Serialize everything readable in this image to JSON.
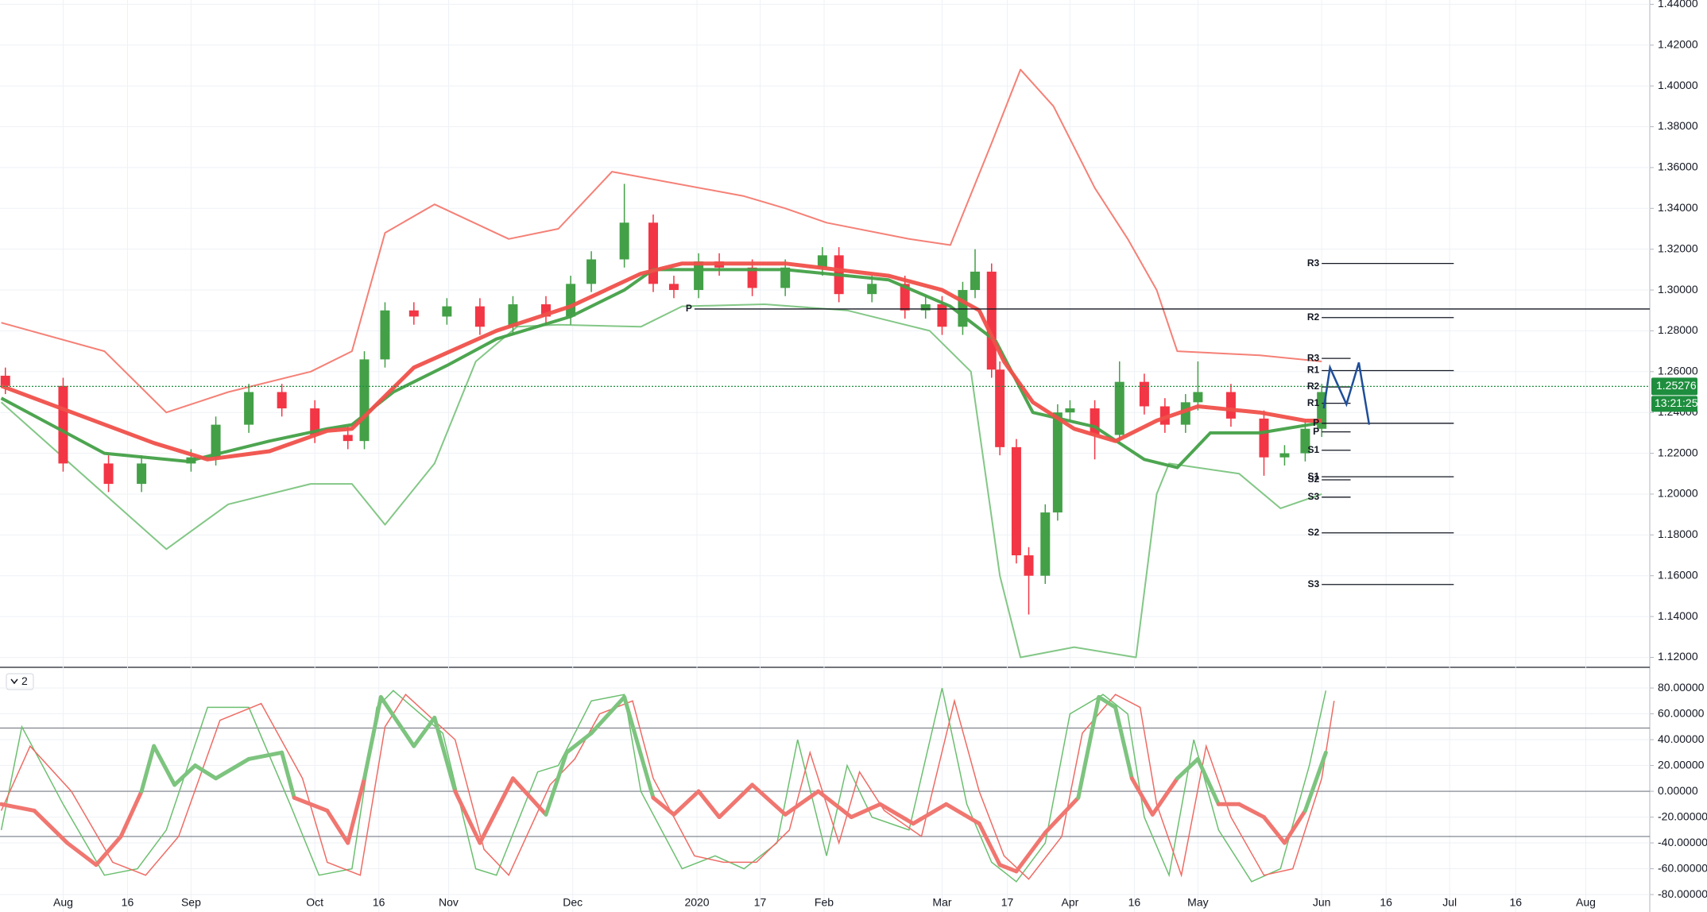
{
  "chart_data": [
    {
      "type": "candlestick",
      "x": [
        -14,
        0,
        11,
        19,
        31,
        37,
        45,
        53,
        61,
        69,
        73,
        78,
        85,
        93,
        101,
        109,
        117,
        123,
        128,
        136,
        143,
        148,
        154,
        159,
        167,
        175,
        184,
        188,
        196,
        204,
        209,
        213,
        218,
        221,
        225,
        227,
        231,
        234,
        238,
        241,
        244,
        250,
        256,
        262,
        267,
        272,
        275,
        283,
        291,
        296,
        301,
        305
      ],
      "open": [
        1.258,
        1.253,
        1.215,
        1.205,
        1.215,
        1.218,
        1.234,
        1.25,
        1.242,
        1.229,
        1.226,
        1.266,
        1.29,
        1.287,
        1.292,
        1.282,
        1.293,
        1.287,
        1.303,
        1.315,
        1.333,
        1.303,
        1.3,
        1.314,
        1.311,
        1.301,
        1.311,
        1.317,
        1.298,
        1.303,
        1.29,
        1.293,
        1.282,
        1.3,
        1.309,
        1.261,
        1.223,
        1.17,
        1.16,
        1.191,
        1.24,
        1.242,
        1.229,
        1.255,
        1.243,
        1.234,
        1.245,
        1.25,
        1.237,
        1.218,
        1.22,
        1.232
      ],
      "high": [
        1.262,
        1.257,
        1.219,
        1.219,
        1.222,
        1.238,
        1.254,
        1.254,
        1.246,
        1.233,
        1.27,
        1.294,
        1.294,
        1.296,
        1.296,
        1.297,
        1.297,
        1.307,
        1.319,
        1.352,
        1.337,
        1.307,
        1.318,
        1.318,
        1.315,
        1.315,
        1.321,
        1.321,
        1.307,
        1.307,
        1.297,
        1.297,
        1.304,
        1.32,
        1.313,
        1.265,
        1.227,
        1.174,
        1.195,
        1.244,
        1.246,
        1.246,
        1.265,
        1.259,
        1.247,
        1.249,
        1.265,
        1.254,
        1.241,
        1.224,
        1.236,
        1.254
      ],
      "low": [
        1.249,
        1.211,
        1.201,
        1.201,
        1.211,
        1.214,
        1.23,
        1.238,
        1.225,
        1.222,
        1.222,
        1.262,
        1.283,
        1.283,
        1.278,
        1.278,
        1.283,
        1.283,
        1.299,
        1.311,
        1.299,
        1.296,
        1.296,
        1.307,
        1.297,
        1.297,
        1.307,
        1.294,
        1.294,
        1.286,
        1.286,
        1.278,
        1.278,
        1.296,
        1.257,
        1.219,
        1.166,
        1.141,
        1.156,
        1.187,
        1.236,
        1.217,
        1.225,
        1.239,
        1.23,
        1.23,
        1.241,
        1.233,
        1.209,
        1.214,
        1.216,
        1.228
      ],
      "close": [
        1.253,
        1.215,
        1.205,
        1.215,
        1.218,
        1.234,
        1.25,
        1.242,
        1.229,
        1.226,
        1.266,
        1.29,
        1.287,
        1.292,
        1.282,
        1.293,
        1.287,
        1.303,
        1.315,
        1.333,
        1.303,
        1.3,
        1.314,
        1.311,
        1.301,
        1.311,
        1.317,
        1.298,
        1.303,
        1.29,
        1.293,
        1.282,
        1.3,
        1.309,
        1.261,
        1.223,
        1.17,
        1.16,
        1.191,
        1.24,
        1.242,
        1.229,
        1.255,
        1.243,
        1.234,
        1.245,
        1.25,
        1.237,
        1.218,
        1.22,
        1.232,
        1.25
      ],
      "up_color": "#43a047",
      "down_color": "#f23645",
      "xlim": [
        -15.3,
        384.5
      ],
      "ylim": [
        1.1159,
        1.4421
      ],
      "yticks": [
        {
          "value": 1.12,
          "label": "1.12000"
        },
        {
          "value": 1.14,
          "label": "1.14000"
        },
        {
          "value": 1.16,
          "label": "1.16000"
        },
        {
          "value": 1.18,
          "label": "1.18000"
        },
        {
          "value": 1.2,
          "label": "1.20000"
        },
        {
          "value": 1.22,
          "label": "1.22000"
        },
        {
          "value": 1.24,
          "label": "1.24000"
        },
        {
          "value": 1.26,
          "label": "1.26000"
        },
        {
          "value": 1.28,
          "label": "1.28000"
        },
        {
          "value": 1.3,
          "label": "1.30000"
        },
        {
          "value": 1.32,
          "label": "1.32000"
        },
        {
          "value": 1.34,
          "label": "1.34000"
        },
        {
          "value": 1.36,
          "label": "1.36000"
        },
        {
          "value": 1.38,
          "label": "1.38000"
        },
        {
          "value": 1.4,
          "label": "1.40000"
        },
        {
          "value": 1.42,
          "label": "1.42000"
        },
        {
          "value": 1.44,
          "label": "1.44000"
        }
      ],
      "grid": true,
      "lines": [
        {
          "color": "#f4796f",
          "width": 2,
          "x": [
            -15,
            10,
            25,
            40,
            60,
            70,
            78,
            90,
            108,
            120,
            133,
            165,
            175,
            185,
            205,
            215,
            225,
            232,
            240,
            250,
            258,
            265,
            270,
            290,
            305
          ],
          "values": [
            1.284,
            1.27,
            1.24,
            1.25,
            1.26,
            1.27,
            1.328,
            1.342,
            1.325,
            1.33,
            1.358,
            1.346,
            1.34,
            1.333,
            1.325,
            1.322,
            1.372,
            1.408,
            1.39,
            1.35,
            1.325,
            1.3,
            1.27,
            1.268,
            1.265
          ]
        },
        {
          "color": "#7cc47f",
          "width": 2,
          "x": [
            -15,
            10,
            25,
            40,
            60,
            70,
            78,
            90,
            100,
            110,
            120,
            140,
            150,
            170,
            190,
            210,
            220,
            227,
            232,
            245,
            260,
            265,
            268,
            285,
            295,
            305
          ],
          "values": [
            1.245,
            1.2,
            1.173,
            1.195,
            1.205,
            1.205,
            1.185,
            1.215,
            1.265,
            1.282,
            1.283,
            1.282,
            1.292,
            1.293,
            1.29,
            1.28,
            1.26,
            1.16,
            1.12,
            1.125,
            1.12,
            1.2,
            1.215,
            1.21,
            1.193,
            1.2
          ]
        },
        {
          "color": "#43a047",
          "width": 4,
          "x": [
            -15,
            10,
            30,
            50,
            64,
            70,
            80,
            93,
            105,
            123,
            136,
            143,
            175,
            200,
            215,
            226,
            235,
            250,
            262,
            270,
            278,
            290,
            305
          ],
          "values": [
            1.247,
            1.22,
            1.216,
            1.226,
            1.232,
            1.234,
            1.25,
            1.263,
            1.276,
            1.287,
            1.3,
            1.31,
            1.31,
            1.305,
            1.292,
            1.275,
            1.24,
            1.233,
            1.217,
            1.213,
            1.23,
            1.23,
            1.235
          ]
        },
        {
          "color": "#f0504a",
          "width": 5,
          "x": [
            -15,
            22,
            35,
            50,
            64,
            70,
            85,
            105,
            123,
            140,
            150,
            175,
            200,
            213,
            222,
            228,
            235,
            245,
            255,
            265,
            275,
            290,
            301,
            305
          ],
          "values": [
            1.253,
            1.225,
            1.217,
            1.221,
            1.231,
            1.232,
            1.262,
            1.28,
            1.292,
            1.308,
            1.313,
            1.313,
            1.307,
            1.3,
            1.29,
            1.265,
            1.245,
            1.232,
            1.226,
            1.236,
            1.243,
            1.24,
            1.236,
            1.236
          ]
        }
      ],
      "pivots": [
        {
          "label": "R3",
          "value": 1.313,
          "x": [
            305,
            337
          ]
        },
        {
          "label": "R2",
          "value": 1.2865,
          "x": [
            305,
            337
          ]
        },
        {
          "label": "P",
          "value": 1.2907,
          "x": [
            153,
            384.5
          ]
        },
        {
          "label": "R3",
          "value": 1.2665,
          "x": [
            305,
            312
          ]
        },
        {
          "label": "R1",
          "value": 1.2605,
          "x": [
            305,
            337
          ]
        },
        {
          "label": "R2",
          "value": 1.2525,
          "x": [
            305,
            312
          ]
        },
        {
          "label": "R1",
          "value": 1.2445,
          "x": [
            305,
            312
          ]
        },
        {
          "label": "P",
          "value": 1.2347,
          "x": [
            305,
            337
          ]
        },
        {
          "label": "P",
          "value": 1.2305,
          "x": [
            305,
            312
          ]
        },
        {
          "label": "S1",
          "value": 1.2215,
          "x": [
            305,
            312
          ]
        },
        {
          "label": "S1",
          "value": 1.2085,
          "x": [
            305,
            337
          ]
        },
        {
          "label": "S2",
          "value": 1.207,
          "x": [
            305,
            312
          ]
        },
        {
          "label": "S3",
          "value": 1.1985,
          "x": [
            305,
            312
          ]
        },
        {
          "label": "S2",
          "value": 1.181,
          "x": [
            305,
            337
          ]
        },
        {
          "label": "S3",
          "value": 1.1557,
          "x": [
            305,
            337
          ]
        }
      ],
      "forecast": {
        "color": "#1f4e9a",
        "x": [
          305.5,
          307,
          311,
          314,
          316.5
        ],
        "values": [
          1.242,
          1.262,
          1.244,
          1.2645,
          1.234
        ]
      },
      "last_price": 1.25276,
      "last_color": "#1e8e3e",
      "countdown": "13:21:25"
    },
    {
      "type": "line",
      "pane_label": "2",
      "xlim": [
        -15.3,
        384.5
      ],
      "ylim": [
        -93.5,
        94.8
      ],
      "yticks": [
        {
          "value": 80,
          "label": "80.00000"
        },
        {
          "value": 60,
          "label": "60.00000"
        },
        {
          "value": 40,
          "label": "40.00000"
        },
        {
          "value": 20,
          "label": "20.00000"
        },
        {
          "value": 0,
          "label": "0.00000"
        },
        {
          "value": -20,
          "label": "-20.00000"
        },
        {
          "value": -40,
          "label": "-40.00000"
        },
        {
          "value": -60,
          "label": "-60.00000"
        },
        {
          "value": -80,
          "label": "-80.00000"
        }
      ],
      "xticks": [
        {
          "value": 0,
          "label": "Aug"
        },
        {
          "value": 15.6,
          "label": "16"
        },
        {
          "value": 31,
          "label": "Sep"
        },
        {
          "value": 61,
          "label": "Oct"
        },
        {
          "value": 76.5,
          "label": "16"
        },
        {
          "value": 93.4,
          "label": "Nov"
        },
        {
          "value": 123.5,
          "label": "Dec"
        },
        {
          "value": 153.6,
          "label": "2020"
        },
        {
          "value": 168.9,
          "label": "17"
        },
        {
          "value": 184.4,
          "label": "Feb"
        },
        {
          "value": 213,
          "label": "Mar"
        },
        {
          "value": 228.8,
          "label": "17"
        },
        {
          "value": 244,
          "label": "Apr"
        },
        {
          "value": 259.6,
          "label": "16"
        },
        {
          "value": 275,
          "label": "May"
        },
        {
          "value": 305,
          "label": "Jun"
        },
        {
          "value": 320.6,
          "label": "16"
        },
        {
          "value": 336,
          "label": "Jul"
        },
        {
          "value": 352,
          "label": "16"
        },
        {
          "value": 369,
          "label": "Aug"
        }
      ],
      "levels": [
        49,
        0,
        -35
      ],
      "series": [
        {
          "color": "#6cbf70",
          "width": 1.5,
          "x": [
            -15,
            -10,
            0,
            10,
            18,
            25,
            35,
            45,
            55,
            62,
            70,
            76,
            80,
            92,
            100,
            105,
            115,
            120,
            128,
            136,
            140,
            150,
            158,
            165,
            173,
            178,
            185,
            190,
            196,
            205,
            213,
            219,
            225,
            231,
            238,
            244,
            252,
            258,
            262,
            268,
            274,
            280,
            288,
            295,
            302,
            306
          ],
          "values": [
            -30,
            50,
            -10,
            -65,
            -60,
            -30,
            65,
            65,
            -10,
            -65,
            -60,
            65,
            78,
            45,
            -60,
            -65,
            15,
            20,
            70,
            75,
            0,
            -60,
            -50,
            -60,
            -40,
            40,
            -50,
            20,
            -20,
            -30,
            80,
            -10,
            -55,
            -70,
            -40,
            60,
            75,
            60,
            -20,
            -65,
            40,
            -30,
            -70,
            -60,
            20,
            78
          ]
        },
        {
          "color": "#ef6b64",
          "width": 1.5,
          "x": [
            -15,
            -8,
            2,
            12,
            20,
            28,
            38,
            48,
            58,
            64,
            72,
            78,
            83,
            95,
            102,
            108,
            118,
            124,
            130,
            138,
            143,
            153,
            160,
            168,
            176,
            181,
            188,
            193,
            199,
            208,
            216,
            222,
            228,
            234,
            242,
            247,
            255,
            261,
            265,
            271,
            277,
            283,
            291,
            298,
            305,
            308
          ],
          "values": [
            -15,
            35,
            0,
            -55,
            -65,
            -35,
            55,
            68,
            10,
            -55,
            -65,
            50,
            75,
            40,
            -45,
            -65,
            5,
            25,
            60,
            70,
            10,
            -50,
            -55,
            -55,
            -30,
            30,
            -40,
            15,
            -15,
            -35,
            70,
            0,
            -50,
            -68,
            -35,
            45,
            75,
            65,
            -10,
            -65,
            35,
            -20,
            -65,
            -60,
            10,
            70
          ]
        },
        {
          "pos_color": "#7dc47f",
          "neg_color": "#f07670",
          "width": 5,
          "x": [
            -15,
            -7,
            1,
            8,
            14,
            19,
            22,
            27,
            32,
            37,
            45,
            53,
            56,
            64,
            69,
            73,
            77,
            85,
            90,
            95,
            101,
            109,
            117,
            122,
            128,
            136,
            143,
            148,
            154,
            159,
            167,
            175,
            183,
            191,
            198,
            206,
            214,
            222,
            227,
            231,
            238,
            246,
            251,
            255,
            259,
            264,
            270,
            275,
            280,
            285,
            291,
            296,
            301,
            306
          ],
          "values": [
            -10,
            -15,
            -40,
            -57,
            -35,
            0,
            35,
            5,
            20,
            10,
            25,
            30,
            -5,
            -15,
            -40,
            10,
            73,
            35,
            57,
            0,
            -40,
            10,
            -18,
            30,
            45,
            73,
            -5,
            -18,
            0,
            -20,
            5,
            -18,
            0,
            -20,
            -10,
            -25,
            -10,
            -25,
            -57,
            -62,
            -32,
            -5,
            73,
            65,
            10,
            -18,
            10,
            25,
            -10,
            -10,
            -20,
            -40,
            -15,
            30
          ]
        }
      ]
    }
  ]
}
